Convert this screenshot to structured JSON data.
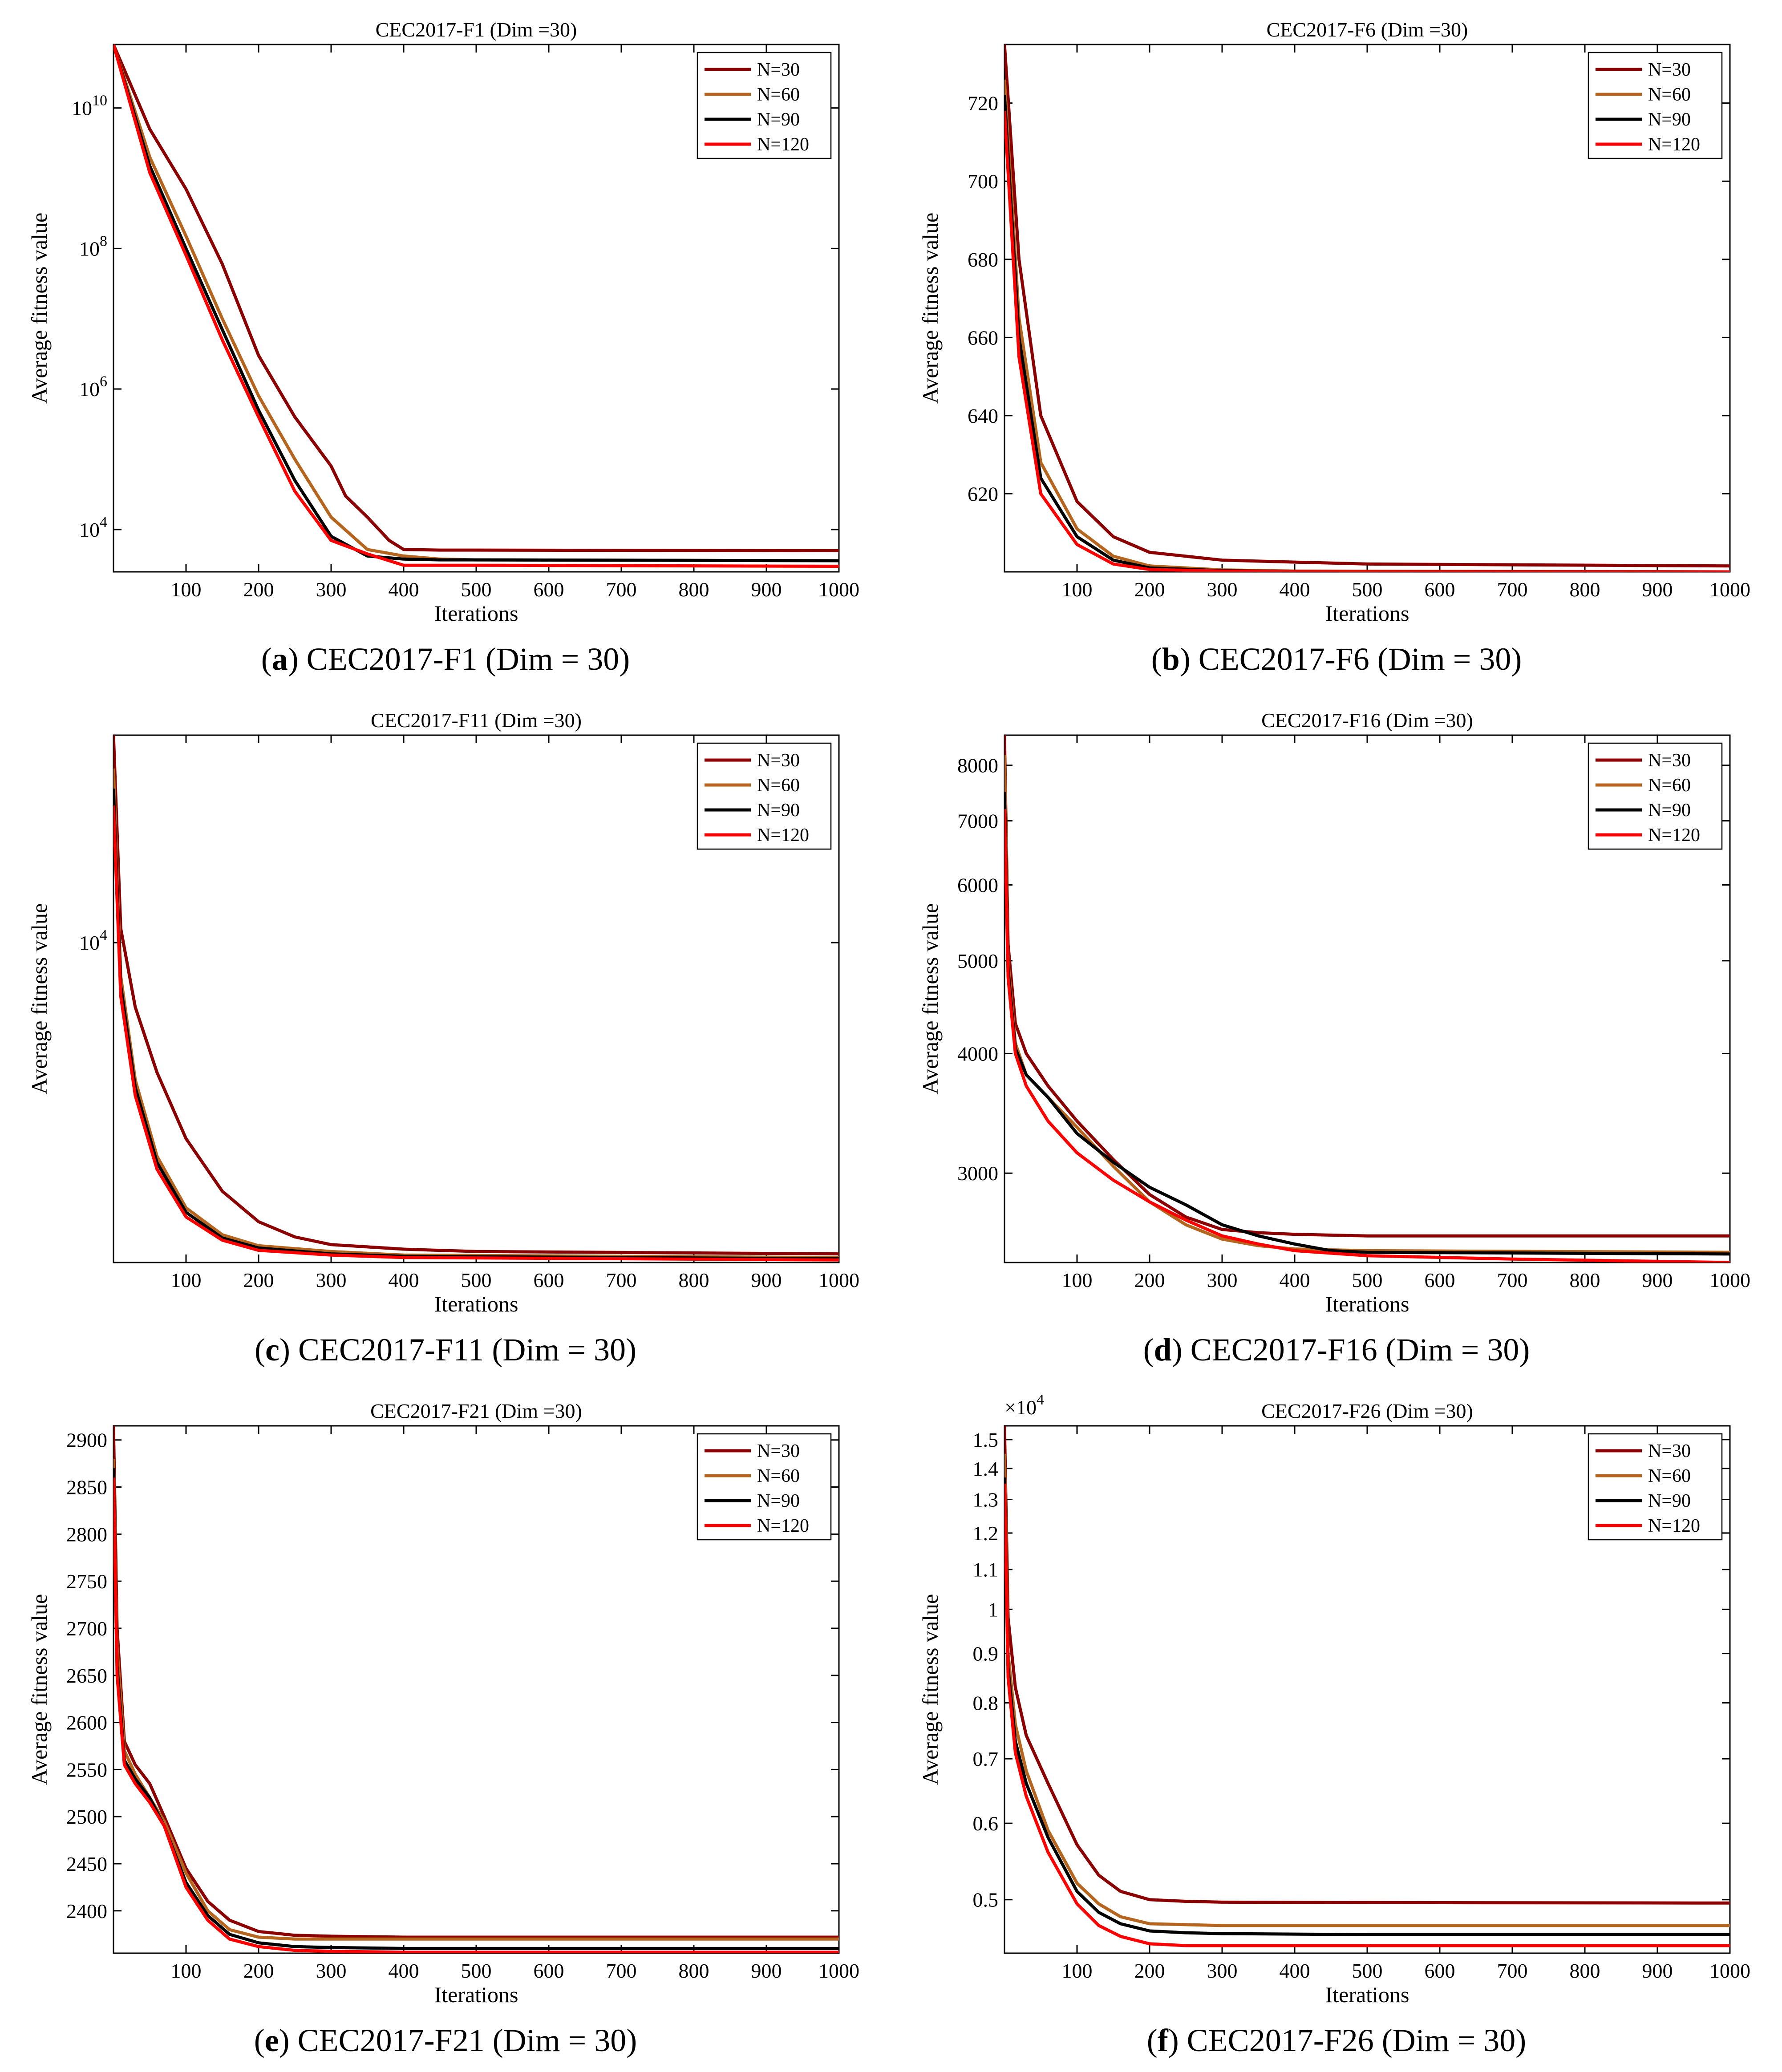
{
  "caption_labels": [
    {
      "letter": "a",
      "text": "CEC2017-F1 (Dim = 30)"
    },
    {
      "letter": "b",
      "text": "CEC2017-F6 (Dim = 30)"
    },
    {
      "letter": "c",
      "text": "CEC2017-F11 (Dim = 30)"
    },
    {
      "letter": "d",
      "text": "CEC2017-F16 (Dim = 30)"
    },
    {
      "letter": "e",
      "text": "CEC2017-F21 (Dim = 30)"
    },
    {
      "letter": "f",
      "text": "CEC2017-F26 (Dim = 30)"
    }
  ],
  "colors": {
    "N=30": "#8b0000",
    "N=60": "#b5651d",
    "N=90": "#000000",
    "N=120": "#ff0000"
  },
  "chart_data": [
    {
      "type": "line",
      "title": "CEC2017-F1 (Dim =30)",
      "xlabel": "Iterations",
      "ylabel": "Average fitness value",
      "yscale": "log",
      "xlim": [
        0,
        1000
      ],
      "ylim": [
        2500,
        80000000000
      ],
      "xticks": [
        100,
        200,
        300,
        400,
        500,
        600,
        700,
        800,
        900,
        1000
      ],
      "yticks": [
        {
          "value": 10000,
          "base": "10",
          "exp": "4"
        },
        {
          "value": 1000000,
          "base": "10",
          "exp": "6"
        },
        {
          "value": 100000000,
          "base": "10",
          "exp": "8"
        },
        {
          "value": 10000000000,
          "base": "10",
          "exp": "10"
        }
      ],
      "legend": [
        "N=30",
        "N=60",
        "N=90",
        "N=120"
      ],
      "series": [
        {
          "name": "N=30",
          "x": [
            0,
            50,
            100,
            150,
            200,
            250,
            300,
            320,
            350,
            380,
            400,
            450,
            500,
            1000
          ],
          "y": [
            80000000000,
            5000000000,
            700000000,
            60000000,
            3000000,
            400000,
            80000,
            30000,
            15000,
            7000,
            5200,
            5100,
            5100,
            5000
          ]
        },
        {
          "name": "N=60",
          "x": [
            0,
            50,
            100,
            150,
            200,
            250,
            300,
            350,
            400,
            450,
            500,
            1000
          ],
          "y": [
            80000000000,
            2000000000,
            150000000,
            10000000,
            800000,
            100000,
            15000,
            5200,
            4200,
            3800,
            3700,
            3600
          ]
        },
        {
          "name": "N=90",
          "x": [
            0,
            50,
            100,
            150,
            200,
            250,
            300,
            350,
            400,
            450,
            500,
            1000
          ],
          "y": [
            80000000000,
            1500000000,
            100000000,
            7000000,
            500000,
            50000,
            8000,
            4200,
            3800,
            3700,
            3700,
            3600
          ]
        },
        {
          "name": "N=120",
          "x": [
            0,
            50,
            100,
            150,
            200,
            250,
            300,
            350,
            400,
            500,
            1000
          ],
          "y": [
            80000000000,
            1200000000,
            80000000,
            5000000,
            400000,
            35000,
            7000,
            4500,
            3100,
            3100,
            3000
          ]
        }
      ]
    },
    {
      "type": "line",
      "title": "CEC2017-F6 (Dim =30)",
      "xlabel": "Iterations",
      "ylabel": "Average fitness value",
      "yscale": "linear",
      "xlim": [
        0,
        1000
      ],
      "ylim": [
        600,
        735
      ],
      "xticks": [
        100,
        200,
        300,
        400,
        500,
        600,
        700,
        800,
        900,
        1000
      ],
      "yticks": [
        620,
        640,
        660,
        680,
        700,
        720
      ],
      "legend": [
        "N=30",
        "N=60",
        "N=90",
        "N=120"
      ],
      "series": [
        {
          "name": "N=30",
          "x": [
            0,
            20,
            50,
            100,
            150,
            200,
            300,
            400,
            500,
            1000
          ],
          "y": [
            735,
            680,
            640,
            618,
            609,
            605,
            603,
            602.5,
            602,
            601.5
          ]
        },
        {
          "name": "N=60",
          "x": [
            0,
            20,
            50,
            100,
            150,
            200,
            300,
            400,
            1000
          ],
          "y": [
            726,
            665,
            628,
            611,
            604,
            601.5,
            600.5,
            600.2,
            600
          ]
        },
        {
          "name": "N=90",
          "x": [
            0,
            20,
            50,
            100,
            150,
            200,
            300,
            400,
            1000
          ],
          "y": [
            722,
            660,
            624,
            609,
            603,
            601,
            600.3,
            600.1,
            600
          ]
        },
        {
          "name": "N=120",
          "x": [
            0,
            20,
            50,
            100,
            150,
            200,
            300,
            400,
            1000
          ],
          "y": [
            718,
            655,
            620,
            607,
            602,
            600.6,
            600.2,
            600.05,
            600
          ]
        }
      ]
    },
    {
      "type": "line",
      "title": "CEC2017-F11 (Dim =30)",
      "xlabel": "Iterations",
      "ylabel": "Average fitness value",
      "yscale": "log",
      "xlim": [
        0,
        1000
      ],
      "ylim": [
        1180,
        40000
      ],
      "xticks": [
        100,
        200,
        300,
        400,
        500,
        600,
        700,
        800,
        900,
        1000
      ],
      "yticks": [
        {
          "value": 10000,
          "base": "10",
          "exp": "4"
        }
      ],
      "legend": [
        "N=30",
        "N=60",
        "N=90",
        "N=120"
      ],
      "series": [
        {
          "name": "N=30",
          "x": [
            0,
            10,
            30,
            60,
            100,
            150,
            200,
            250,
            300,
            400,
            500,
            1000
          ],
          "y": [
            40000,
            11000,
            6500,
            4200,
            2700,
            1900,
            1550,
            1400,
            1330,
            1290,
            1270,
            1250
          ]
        },
        {
          "name": "N=60",
          "x": [
            0,
            10,
            30,
            60,
            100,
            150,
            200,
            300,
            400,
            1000
          ],
          "y": [
            32000,
            8000,
            4000,
            2400,
            1700,
            1420,
            1320,
            1270,
            1240,
            1220
          ]
        },
        {
          "name": "N=90",
          "x": [
            0,
            10,
            30,
            60,
            100,
            150,
            200,
            300,
            400,
            1000
          ],
          "y": [
            28000,
            7500,
            3800,
            2300,
            1650,
            1390,
            1300,
            1250,
            1230,
            1210
          ]
        },
        {
          "name": "N=120",
          "x": [
            0,
            10,
            30,
            60,
            100,
            150,
            200,
            300,
            400,
            1000
          ],
          "y": [
            25000,
            7000,
            3600,
            2200,
            1600,
            1370,
            1280,
            1240,
            1220,
            1200
          ]
        }
      ]
    },
    {
      "type": "line",
      "title": "CEC2017-F16 (Dim =30)",
      "xlabel": "Iterations",
      "ylabel": "Average fitness value",
      "yscale": "log",
      "xlim": [
        0,
        1000
      ],
      "ylim": [
        2420,
        8600
      ],
      "xticks": [
        100,
        200,
        300,
        400,
        500,
        600,
        700,
        800,
        900,
        1000
      ],
      "yticks": [
        {
          "value": 3000,
          "label": "3000"
        },
        {
          "value": 4000,
          "label": "4000"
        },
        {
          "value": 5000,
          "label": "5000"
        },
        {
          "value": 6000,
          "label": "6000"
        },
        {
          "value": 7000,
          "label": "7000"
        },
        {
          "value": 8000,
          "label": "8000"
        }
      ],
      "legend": [
        "N=30",
        "N=60",
        "N=90",
        "N=120"
      ],
      "series": [
        {
          "name": "N=30",
          "x": [
            0,
            5,
            15,
            30,
            60,
            100,
            150,
            200,
            250,
            300,
            350,
            400,
            500,
            1000
          ],
          "y": [
            8600,
            5200,
            4300,
            4000,
            3700,
            3400,
            3100,
            2850,
            2700,
            2620,
            2600,
            2590,
            2580,
            2580
          ]
        },
        {
          "name": "N=60",
          "x": [
            0,
            5,
            15,
            30,
            60,
            100,
            150,
            200,
            250,
            300,
            350,
            400,
            500,
            1000
          ],
          "y": [
            8200,
            5000,
            4100,
            3800,
            3600,
            3350,
            3050,
            2800,
            2650,
            2560,
            2520,
            2500,
            2490,
            2480
          ]
        },
        {
          "name": "N=90",
          "x": [
            0,
            5,
            15,
            30,
            60,
            100,
            150,
            200,
            250,
            300,
            350,
            400,
            450,
            500,
            1000
          ],
          "y": [
            7500,
            4900,
            4050,
            3800,
            3600,
            3300,
            3080,
            2900,
            2780,
            2650,
            2580,
            2530,
            2490,
            2480,
            2470
          ]
        },
        {
          "name": "N=120",
          "x": [
            0,
            5,
            15,
            30,
            60,
            100,
            150,
            200,
            250,
            300,
            350,
            400,
            500,
            700,
            1000
          ],
          "y": [
            7200,
            4800,
            4000,
            3700,
            3400,
            3150,
            2950,
            2800,
            2680,
            2580,
            2530,
            2490,
            2460,
            2440,
            2420
          ]
        }
      ]
    },
    {
      "type": "line",
      "title": "CEC2017-F21 (Dim =30)",
      "xlabel": "Iterations",
      "ylabel": "Average fitness value",
      "yscale": "linear",
      "xlim": [
        0,
        1000
      ],
      "ylim": [
        2355,
        2915
      ],
      "xticks": [
        100,
        200,
        300,
        400,
        500,
        600,
        700,
        800,
        900,
        1000
      ],
      "yticks": [
        2400,
        2450,
        2500,
        2550,
        2600,
        2650,
        2700,
        2750,
        2800,
        2850,
        2900
      ],
      "legend": [
        "N=30",
        "N=60",
        "N=90",
        "N=120"
      ],
      "series": [
        {
          "name": "N=30",
          "x": [
            0,
            5,
            15,
            30,
            50,
            70,
            100,
            130,
            160,
            200,
            250,
            300,
            400,
            1000
          ],
          "y": [
            2915,
            2700,
            2580,
            2555,
            2535,
            2500,
            2445,
            2410,
            2390,
            2378,
            2374,
            2373,
            2372,
            2372
          ]
        },
        {
          "name": "N=60",
          "x": [
            0,
            5,
            15,
            30,
            50,
            70,
            100,
            130,
            160,
            200,
            250,
            300,
            400,
            1000
          ],
          "y": [
            2880,
            2680,
            2570,
            2545,
            2520,
            2495,
            2440,
            2400,
            2380,
            2372,
            2370,
            2370,
            2370,
            2370
          ]
        },
        {
          "name": "N=90",
          "x": [
            0,
            5,
            15,
            30,
            50,
            70,
            100,
            130,
            160,
            200,
            250,
            300,
            400,
            1000
          ],
          "y": [
            2870,
            2660,
            2560,
            2540,
            2520,
            2490,
            2430,
            2395,
            2375,
            2366,
            2362,
            2361,
            2360,
            2360
          ]
        },
        {
          "name": "N=120",
          "x": [
            0,
            5,
            15,
            30,
            50,
            70,
            100,
            130,
            160,
            200,
            250,
            300,
            400,
            1000
          ],
          "y": [
            2860,
            2650,
            2555,
            2535,
            2515,
            2490,
            2425,
            2390,
            2370,
            2362,
            2358,
            2357,
            2356,
            2356
          ]
        }
      ]
    },
    {
      "type": "line",
      "title": "CEC2017-F26 (Dim =30)",
      "xlabel": "Iterations",
      "ylabel": "Average fitness value",
      "yscale": "log",
      "y_multiplier": "×10^4",
      "xlim": [
        0,
        1000
      ],
      "ylim": [
        4400,
        15500
      ],
      "xticks": [
        100,
        200,
        300,
        400,
        500,
        600,
        700,
        800,
        900,
        1000
      ],
      "yticks": [
        {
          "value": 5000,
          "label": "0.5"
        },
        {
          "value": 6000,
          "label": "0.6"
        },
        {
          "value": 7000,
          "label": "0.7"
        },
        {
          "value": 8000,
          "label": "0.8"
        },
        {
          "value": 9000,
          "label": "0.9"
        },
        {
          "value": 10000,
          "label": "1"
        },
        {
          "value": 11000,
          "label": "1.1"
        },
        {
          "value": 12000,
          "label": "1.2"
        },
        {
          "value": 13000,
          "label": "1.3"
        },
        {
          "value": 14000,
          "label": "1.4"
        },
        {
          "value": 15000,
          "label": "1.5"
        }
      ],
      "legend": [
        "N=30",
        "N=60",
        "N=90",
        "N=120"
      ],
      "series": [
        {
          "name": "N=30",
          "x": [
            0,
            5,
            15,
            30,
            60,
            100,
            130,
            160,
            200,
            250,
            300,
            500,
            1000
          ],
          "y": [
            15500,
            9800,
            8300,
            7400,
            6600,
            5700,
            5300,
            5100,
            5000,
            4980,
            4970,
            4965,
            4960
          ]
        },
        {
          "name": "N=60",
          "x": [
            0,
            5,
            15,
            30,
            60,
            100,
            130,
            160,
            200,
            250,
            300,
            500,
            1000
          ],
          "y": [
            14500,
            9000,
            7600,
            6800,
            5900,
            5200,
            4950,
            4800,
            4720,
            4710,
            4700,
            4700,
            4700
          ]
        },
        {
          "name": "N=90",
          "x": [
            0,
            5,
            15,
            30,
            60,
            100,
            130,
            160,
            200,
            250,
            300,
            500,
            1000
          ],
          "y": [
            13700,
            8700,
            7300,
            6600,
            5800,
            5100,
            4850,
            4720,
            4640,
            4620,
            4610,
            4600,
            4600
          ]
        },
        {
          "name": "N=120",
          "x": [
            0,
            5,
            15,
            30,
            60,
            100,
            130,
            160,
            200,
            250,
            300,
            500,
            1000
          ],
          "y": [
            13500,
            8500,
            7100,
            6400,
            5600,
            4950,
            4700,
            4580,
            4500,
            4480,
            4480,
            4480,
            4480
          ]
        }
      ]
    }
  ]
}
